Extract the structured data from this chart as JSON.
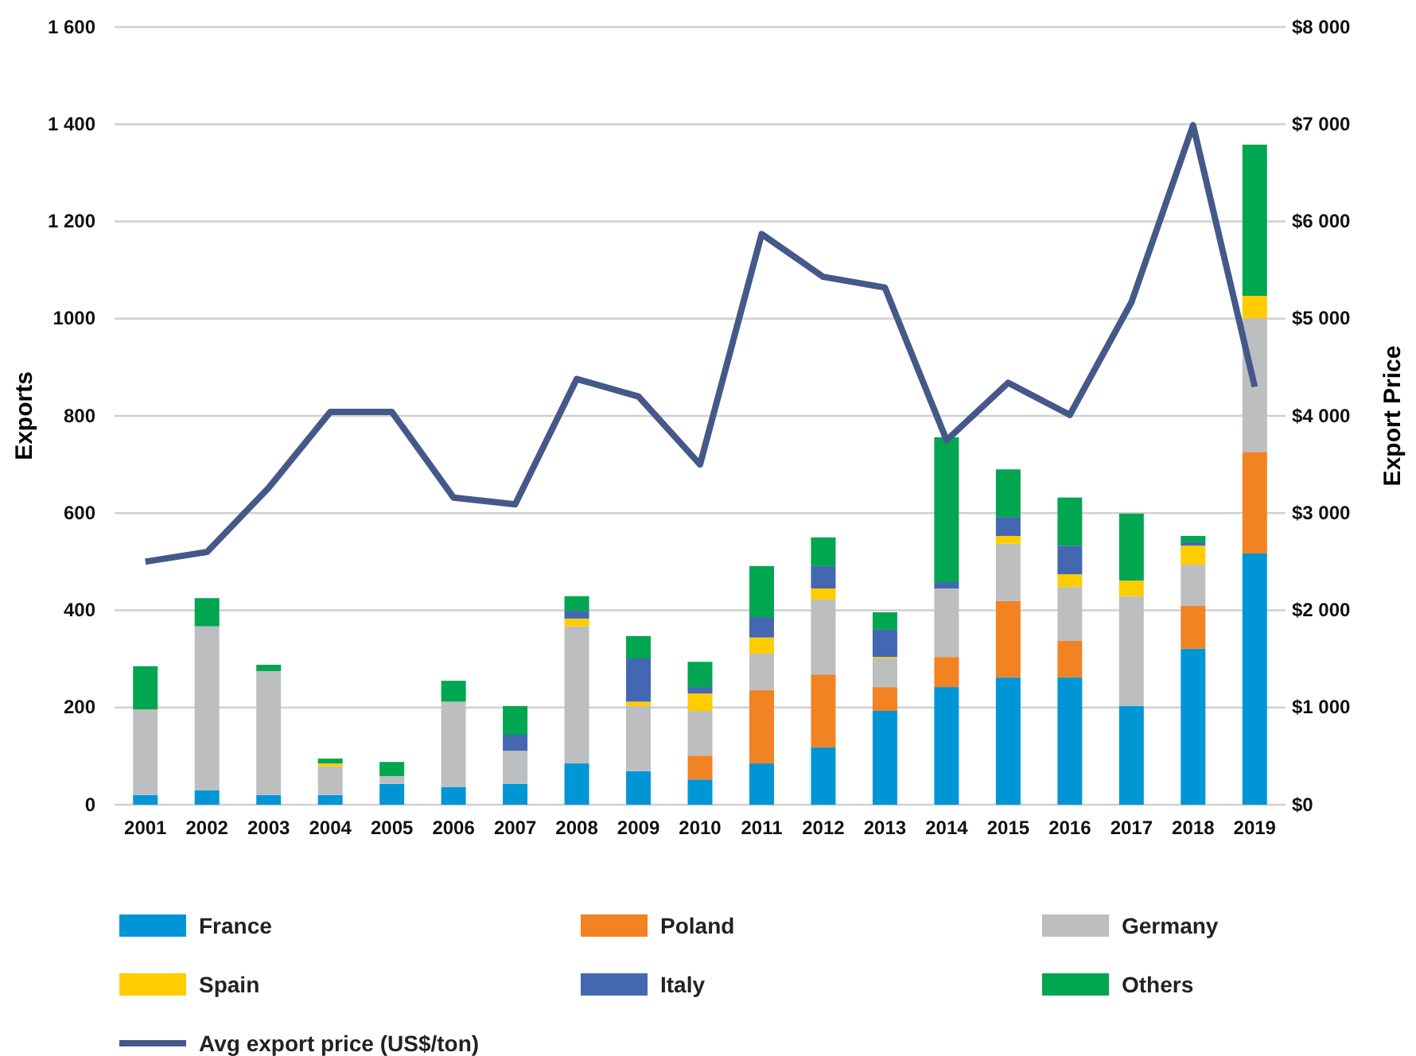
{
  "chart_data": {
    "type": "bar",
    "stacked": true,
    "ylabel": "Exports",
    "y2label": "Export Price",
    "categories": [
      "2001",
      "2002",
      "2003",
      "2004",
      "2005",
      "2006",
      "2007",
      "2008",
      "2009",
      "2010",
      "2011",
      "2012",
      "2013",
      "2014",
      "2015",
      "2016",
      "2017",
      "2018",
      "2019"
    ],
    "series": [
      {
        "name": "France",
        "color": "#0096d6",
        "values": [
          20,
          30,
          20,
          20,
          43,
          36,
          43,
          85,
          69,
          52,
          85,
          118,
          193,
          242,
          262,
          262,
          203,
          321,
          517
        ]
      },
      {
        "name": "Poland",
        "color": "#f28323",
        "values": [
          0,
          0,
          0,
          0,
          0,
          0,
          0,
          0,
          0,
          49,
          151,
          150,
          49,
          62,
          157,
          75,
          0,
          88,
          209
        ]
      },
      {
        "name": "Germany",
        "color": "#bdbec0",
        "values": [
          176,
          337,
          255,
          59,
          16,
          176,
          68,
          282,
          134,
          92,
          75,
          154,
          59,
          141,
          118,
          111,
          226,
          85,
          275
        ]
      },
      {
        "name": "Spain",
        "color": "#ffcc00",
        "values": [
          0,
          0,
          0,
          6,
          0,
          0,
          0,
          16,
          9,
          36,
          33,
          23,
          3,
          0,
          16,
          26,
          32,
          39,
          46
        ]
      },
      {
        "name": "Italy",
        "color": "#4368b1",
        "values": [
          0,
          0,
          0,
          0,
          0,
          0,
          33,
          16,
          89,
          13,
          42,
          46,
          56,
          13,
          39,
          59,
          0,
          7,
          0
        ]
      },
      {
        "name": "Others",
        "color": "#00a650",
        "values": [
          89,
          58,
          13,
          10,
          29,
          43,
          59,
          30,
          46,
          52,
          105,
          59,
          36,
          298,
          98,
          99,
          138,
          13,
          311
        ]
      },
      {
        "name": "Avg export price (US$/ton)",
        "type": "line",
        "axis": "y2",
        "color": "#44598a",
        "values": [
          2500,
          2600,
          3260,
          4040,
          4040,
          3160,
          3090,
          4380,
          4200,
          3500,
          5870,
          5430,
          5320,
          3750,
          4340,
          4010,
          5170,
          6990,
          4300
        ]
      }
    ],
    "ylim": [
      0,
      1600
    ],
    "yticks": [
      0,
      200,
      400,
      600,
      800,
      1000,
      {
        "value": 1200,
        "label": "1 200"
      },
      {
        "value": 1400,
        "label": "1 400"
      },
      {
        "value": 1600,
        "label": "1 600"
      }
    ],
    "y2lim": [
      0,
      8000
    ],
    "y2ticks": [
      {
        "value": 0,
        "label": "$0"
      },
      {
        "value": 1000,
        "label": "$1 000"
      },
      {
        "value": 2000,
        "label": "$2 000"
      },
      {
        "value": 3000,
        "label": "$3 000"
      },
      {
        "value": 4000,
        "label": "$4 000"
      },
      {
        "value": 5000,
        "label": "$5 000"
      },
      {
        "value": 6000,
        "label": "$6 000"
      },
      {
        "value": 7000,
        "label": "$7 000"
      },
      {
        "value": 8000,
        "label": "$8 000"
      }
    ],
    "grid": "y",
    "legend": "bottom"
  }
}
